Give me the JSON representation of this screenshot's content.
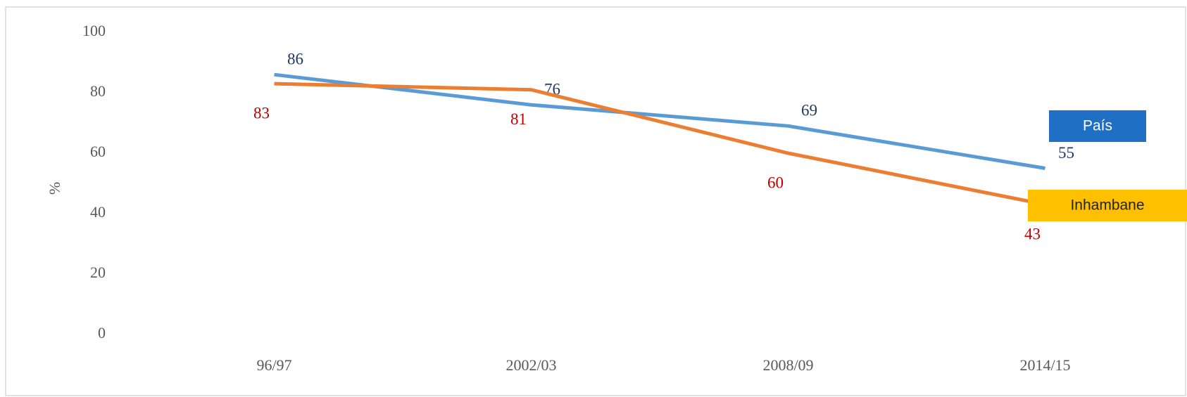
{
  "chart_data": {
    "type": "line",
    "y_label": "%",
    "categories": [
      "96/97",
      "2002/03",
      "2008/09",
      "2014/15"
    ],
    "series": [
      {
        "name": "País",
        "color": "#5b9bd5",
        "label_color": "#1f3864",
        "legend_color": "#1f6fc5",
        "legend_text_color": "#ffffff",
        "values": [
          86,
          76,
          69,
          55
        ]
      },
      {
        "name": "Inhambane",
        "color": "#ed7d31",
        "label_color": "#c00000",
        "legend_color": "#ffc000",
        "legend_text_color": "#222222",
        "values": [
          83,
          81,
          60,
          43
        ]
      }
    ],
    "ylim": [
      0,
      100
    ],
    "yticks": [
      0,
      20,
      40,
      60,
      80,
      100
    ],
    "grid": false
  }
}
